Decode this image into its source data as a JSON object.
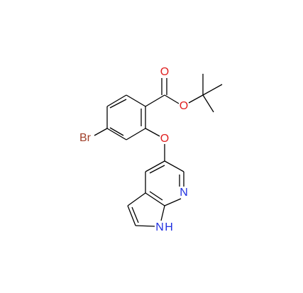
{
  "atoms": [
    {
      "label": "O"
    },
    {
      "label": "O"
    },
    {
      "label": "O"
    },
    {
      "label": "Br"
    },
    {
      "label": "N"
    },
    {
      "label": "N"
    },
    {
      "label": "H"
    }
  ]
}
